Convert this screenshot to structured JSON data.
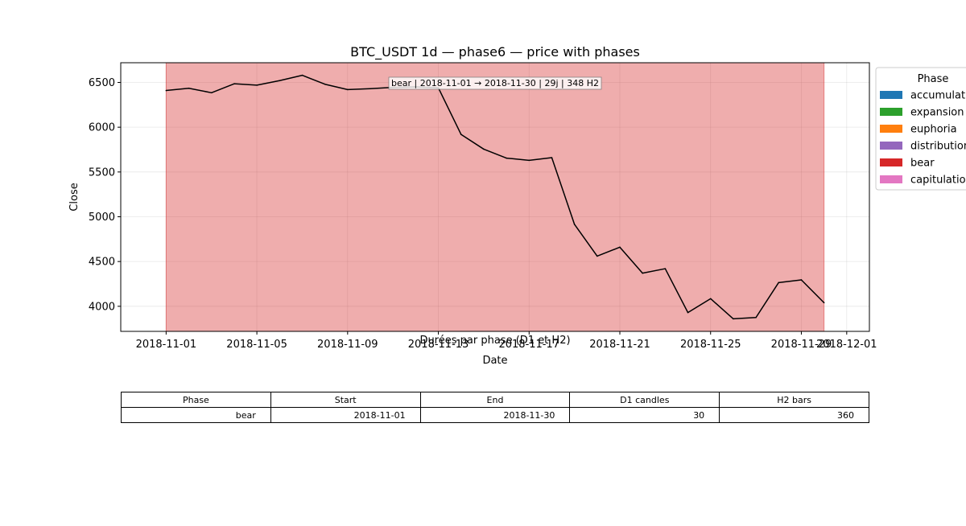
{
  "chart_data": {
    "type": "line",
    "title": "BTC_USDT 1d — phase6 — price with phases",
    "xlabel": "Date",
    "ylabel": "Close",
    "x_range": [
      "2018-10-30",
      "2018-12-02"
    ],
    "ylim": [
      3720,
      6720
    ],
    "y_ticks": [
      4000,
      4500,
      5000,
      5500,
      6000,
      6500
    ],
    "x_ticks": [
      "2018-11-01",
      "2018-11-05",
      "2018-11-09",
      "2018-11-13",
      "2018-11-17",
      "2018-11-21",
      "2018-11-25",
      "2018-11-29",
      "2018-12-01"
    ],
    "grid": true,
    "series": [
      {
        "color": "#000000",
        "points": [
          {
            "x": "2018-11-01",
            "y": 6410
          },
          {
            "x": "2018-11-02",
            "y": 6435
          },
          {
            "x": "2018-11-03",
            "y": 6385
          },
          {
            "x": "2018-11-04",
            "y": 6485
          },
          {
            "x": "2018-11-05",
            "y": 6470
          },
          {
            "x": "2018-11-06",
            "y": 6520
          },
          {
            "x": "2018-11-07",
            "y": 6580
          },
          {
            "x": "2018-11-08",
            "y": 6480
          },
          {
            "x": "2018-11-09",
            "y": 6420
          },
          {
            "x": "2018-11-10",
            "y": 6430
          },
          {
            "x": "2018-11-11",
            "y": 6445
          },
          {
            "x": "2018-11-12",
            "y": 6450
          },
          {
            "x": "2018-11-13",
            "y": 6440
          },
          {
            "x": "2018-11-14",
            "y": 5920
          },
          {
            "x": "2018-11-15",
            "y": 5755
          },
          {
            "x": "2018-11-16",
            "y": 5655
          },
          {
            "x": "2018-11-17",
            "y": 5630
          },
          {
            "x": "2018-11-18",
            "y": 5660
          },
          {
            "x": "2018-11-19",
            "y": 4915
          },
          {
            "x": "2018-11-20",
            "y": 4560
          },
          {
            "x": "2018-11-21",
            "y": 4660
          },
          {
            "x": "2018-11-22",
            "y": 4370
          },
          {
            "x": "2018-11-23",
            "y": 4420
          },
          {
            "x": "2018-11-24",
            "y": 3930
          },
          {
            "x": "2018-11-25",
            "y": 4085
          },
          {
            "x": "2018-11-26",
            "y": 3860
          },
          {
            "x": "2018-11-27",
            "y": 3875
          },
          {
            "x": "2018-11-28",
            "y": 4265
          },
          {
            "x": "2018-11-29",
            "y": 4295
          },
          {
            "x": "2018-11-30",
            "y": 4040
          }
        ]
      }
    ],
    "phase_spans": [
      {
        "phase": "bear",
        "start": "2018-11-01",
        "end": "2018-11-30",
        "color": "#d62728",
        "label": "bear | 2018-11-01 → 2018-11-30 | 29j | 348 H2"
      }
    ],
    "legend": {
      "title": "Phase",
      "placement": "outside-right",
      "items": [
        {
          "label": "accumulation",
          "color": "#1f77b4"
        },
        {
          "label": "expansion",
          "color": "#2ca02c"
        },
        {
          "label": "euphoria",
          "color": "#ff7f0e"
        },
        {
          "label": "distribution",
          "color": "#9467bd"
        },
        {
          "label": "bear",
          "color": "#d62728"
        },
        {
          "label": "capitulation",
          "color": "#e377c2"
        }
      ]
    }
  },
  "table": {
    "title": "Durées par phase (D1 et H2)",
    "headers": [
      "Phase",
      "Start",
      "End",
      "D1 candles",
      "H2 bars"
    ],
    "rows": [
      [
        "bear",
        "2018-11-01",
        "2018-11-30",
        "30",
        "360"
      ]
    ]
  }
}
